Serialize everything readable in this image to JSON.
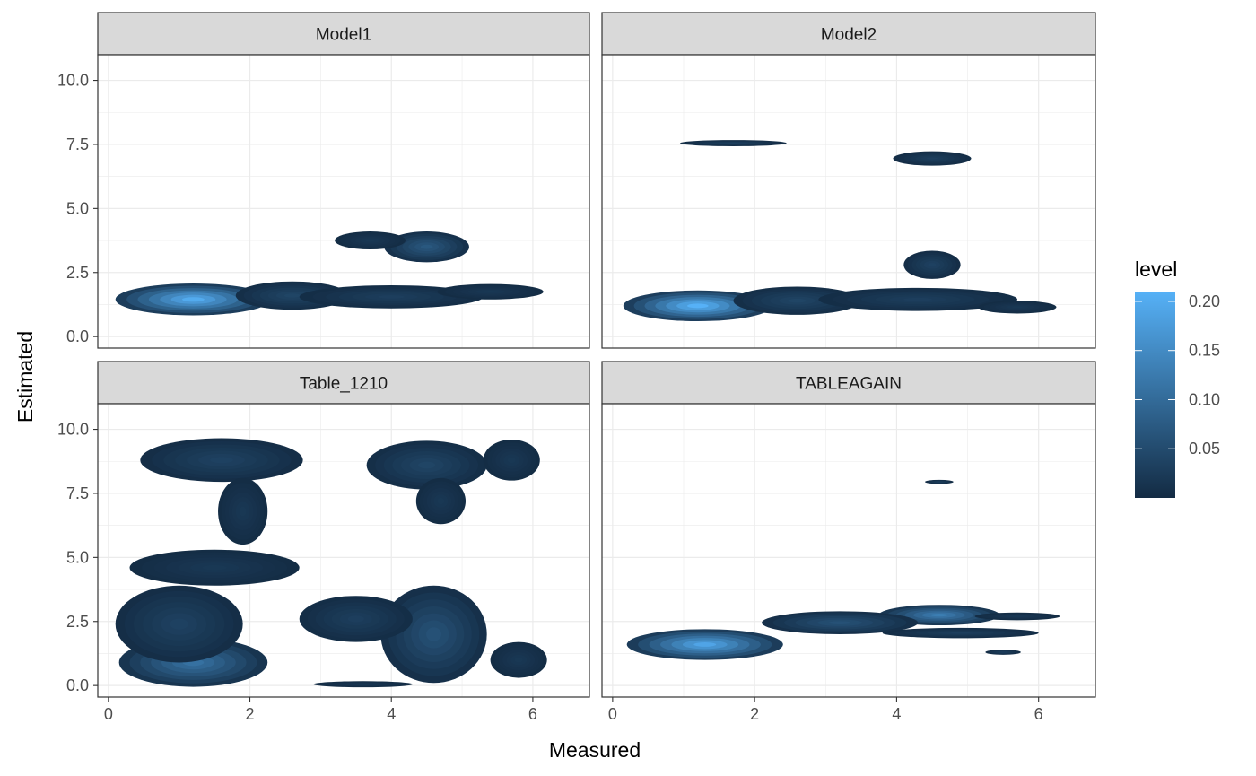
{
  "chart_data": {
    "type": "density2d-filled",
    "xlabel": "Measured",
    "ylabel": "Estimated",
    "xlim": [
      -0.15,
      6.8
    ],
    "ylim": [
      -0.45,
      11.0
    ],
    "x_ticks": [
      0,
      2,
      4,
      6
    ],
    "y_ticks": [
      0.0,
      2.5,
      5.0,
      7.5,
      10.0
    ],
    "y_tick_labels": [
      "0.0",
      "2.5",
      "5.0",
      "7.5",
      "10.0"
    ],
    "grid": true,
    "legend": {
      "title": "level",
      "position": "right",
      "low_color": "#132B43",
      "high_color": "#56B1F7",
      "range": [
        0.0,
        0.21
      ],
      "ticks": [
        0.05,
        0.1,
        0.15,
        0.2
      ],
      "tick_labels": [
        "0.05",
        "0.10",
        "0.15",
        "0.20"
      ]
    },
    "facets": [
      {
        "name": "Model1",
        "blobs": [
          {
            "cx": 1.2,
            "cy": 1.45,
            "rx": 1.1,
            "ry": 0.62,
            "peak": 0.2
          },
          {
            "cx": 2.6,
            "cy": 1.6,
            "rx": 0.8,
            "ry": 0.55,
            "peak": 0.04
          },
          {
            "cx": 4.0,
            "cy": 1.55,
            "rx": 1.3,
            "ry": 0.45,
            "peak": 0.03
          },
          {
            "cx": 5.4,
            "cy": 1.75,
            "rx": 0.75,
            "ry": 0.3,
            "peak": 0.02
          },
          {
            "cx": 4.5,
            "cy": 3.5,
            "rx": 0.6,
            "ry": 0.6,
            "peak": 0.07
          },
          {
            "cx": 3.7,
            "cy": 3.75,
            "rx": 0.5,
            "ry": 0.35,
            "peak": 0.02
          }
        ]
      },
      {
        "name": "Model2",
        "blobs": [
          {
            "cx": 1.2,
            "cy": 1.2,
            "rx": 1.05,
            "ry": 0.6,
            "peak": 0.21
          },
          {
            "cx": 2.6,
            "cy": 1.4,
            "rx": 0.9,
            "ry": 0.55,
            "peak": 0.04
          },
          {
            "cx": 4.3,
            "cy": 1.45,
            "rx": 1.4,
            "ry": 0.45,
            "peak": 0.03
          },
          {
            "cx": 5.7,
            "cy": 1.15,
            "rx": 0.55,
            "ry": 0.25,
            "peak": 0.02
          },
          {
            "cx": 4.5,
            "cy": 2.8,
            "rx": 0.4,
            "ry": 0.55,
            "peak": 0.035
          },
          {
            "cx": 1.7,
            "cy": 7.55,
            "rx": 0.75,
            "ry": 0.12,
            "peak": 0.03
          },
          {
            "cx": 4.5,
            "cy": 6.95,
            "rx": 0.55,
            "ry": 0.28,
            "peak": 0.03
          }
        ]
      },
      {
        "name": "Table_1210",
        "blobs": [
          {
            "cx": 1.2,
            "cy": 0.9,
            "rx": 1.05,
            "ry": 0.95,
            "peak": 0.11
          },
          {
            "cx": 1.0,
            "cy": 2.4,
            "rx": 0.9,
            "ry": 1.5,
            "peak": 0.035
          },
          {
            "cx": 1.5,
            "cy": 4.6,
            "rx": 1.2,
            "ry": 0.7,
            "peak": 0.02
          },
          {
            "cx": 1.6,
            "cy": 8.8,
            "rx": 1.15,
            "ry": 0.85,
            "peak": 0.035
          },
          {
            "cx": 1.9,
            "cy": 6.8,
            "rx": 0.35,
            "ry": 1.3,
            "peak": 0.02
          },
          {
            "cx": 4.6,
            "cy": 2.0,
            "rx": 0.75,
            "ry": 1.9,
            "peak": 0.06
          },
          {
            "cx": 3.5,
            "cy": 2.6,
            "rx": 0.8,
            "ry": 0.9,
            "peak": 0.03
          },
          {
            "cx": 4.5,
            "cy": 8.6,
            "rx": 0.85,
            "ry": 0.95,
            "peak": 0.04
          },
          {
            "cx": 4.7,
            "cy": 7.2,
            "rx": 0.35,
            "ry": 0.9,
            "peak": 0.02
          },
          {
            "cx": 5.7,
            "cy": 8.8,
            "rx": 0.4,
            "ry": 0.8,
            "peak": 0.02
          },
          {
            "cx": 5.8,
            "cy": 1.0,
            "rx": 0.4,
            "ry": 0.7,
            "peak": 0.02
          },
          {
            "cx": 3.6,
            "cy": 0.05,
            "rx": 0.7,
            "ry": 0.12,
            "peak": 0.02
          }
        ]
      },
      {
        "name": "TABLEAGAIN",
        "blobs": [
          {
            "cx": 1.3,
            "cy": 1.6,
            "rx": 1.1,
            "ry": 0.6,
            "peak": 0.19
          },
          {
            "cx": 4.6,
            "cy": 2.75,
            "rx": 0.85,
            "ry": 0.4,
            "peak": 0.13
          },
          {
            "cx": 3.2,
            "cy": 2.45,
            "rx": 1.1,
            "ry": 0.45,
            "peak": 0.06
          },
          {
            "cx": 5.7,
            "cy": 2.7,
            "rx": 0.6,
            "ry": 0.15,
            "peak": 0.02
          },
          {
            "cx": 4.9,
            "cy": 2.05,
            "rx": 1.1,
            "ry": 0.2,
            "peak": 0.03
          },
          {
            "cx": 5.5,
            "cy": 1.3,
            "rx": 0.25,
            "ry": 0.1,
            "peak": 0.03
          },
          {
            "cx": 4.6,
            "cy": 7.95,
            "rx": 0.2,
            "ry": 0.08,
            "peak": 0.03
          }
        ]
      }
    ]
  }
}
